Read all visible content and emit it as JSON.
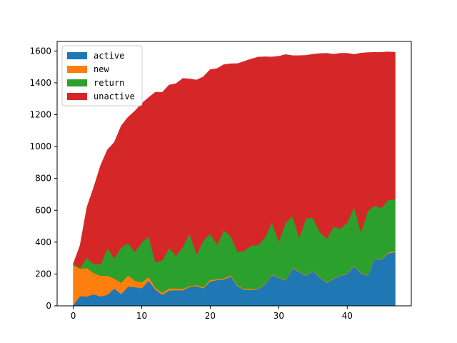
{
  "chart_data": {
    "type": "area",
    "stacked": true,
    "title": "",
    "xlabel": "",
    "ylabel": "",
    "xlim": [
      -2.35,
      49.35
    ],
    "ylim": [
      0,
      1660
    ],
    "x_ticks": [
      0,
      10,
      20,
      30,
      40
    ],
    "y_ticks": [
      0,
      200,
      400,
      600,
      800,
      1000,
      1200,
      1400,
      1600
    ],
    "legend_position": "top-left",
    "grid": false,
    "x": [
      0,
      1,
      2,
      3,
      4,
      5,
      6,
      7,
      8,
      9,
      10,
      11,
      12,
      13,
      14,
      15,
      16,
      17,
      18,
      19,
      20,
      21,
      22,
      23,
      24,
      25,
      26,
      27,
      28,
      29,
      30,
      31,
      32,
      33,
      34,
      35,
      36,
      37,
      38,
      39,
      40,
      41,
      42,
      43,
      44,
      45,
      46,
      47
    ],
    "series": [
      {
        "name": "active",
        "color": "#1f77b4",
        "values": [
          5,
          62,
          59,
          73,
          59,
          70,
          109,
          74,
          121,
          118,
          110,
          158,
          103,
          70,
          96,
          99,
          97,
          120,
          124,
          110,
          154,
          162,
          166,
          184,
          124,
          100,
          100,
          105,
          135,
          194,
          175,
          160,
          235,
          212,
          190,
          218,
          180,
          145,
          170,
          189,
          201,
          250,
          205,
          190,
          295,
          290,
          330,
          338
        ]
      },
      {
        "name": "new",
        "color": "#ff7f0e",
        "values": [
          250,
          172,
          179,
          133,
          130,
          120,
          62,
          71,
          70,
          40,
          38,
          24,
          11,
          13,
          14,
          10,
          10,
          6,
          7,
          7,
          10,
          5,
          7,
          8,
          5,
          5,
          6,
          3,
          3,
          4,
          3,
          3,
          4,
          3,
          3,
          3,
          3,
          4,
          3,
          3,
          3,
          4,
          3,
          3,
          4,
          3,
          6,
          7
        ]
      },
      {
        "name": "return",
        "color": "#2ca02c",
        "values": [
          8,
          5,
          66,
          57,
          72,
          172,
          128,
          223,
          204,
          180,
          250,
          254,
          160,
          203,
          255,
          206,
          265,
          327,
          192,
          295,
          290,
          218,
          302,
          245,
          210,
          241,
          274,
          274,
          293,
          327,
          227,
          359,
          325,
          213,
          357,
          332,
          281,
          274,
          325,
          293,
          319,
          368,
          255,
          403,
          330,
          322,
          330,
          323
        ]
      },
      {
        "name": "unactive",
        "color": "#d62728",
        "values": [
          0,
          141,
          316,
          482,
          621,
          618,
          728,
          762,
          789,
          885,
          873,
          872,
          1068,
          1054,
          1022,
          1080,
          1056,
          972,
          1095,
          1026,
          1030,
          1105,
          1040,
          1083,
          1182,
          1190,
          1170,
          1180,
          1133,
          1038,
          1162,
          1056,
          1007,
          1143,
          1023,
          1027,
          1120,
          1163,
          1082,
          1101,
          1063,
          957,
          1124,
          994,
          963,
          977,
          929,
          924
        ]
      }
    ]
  }
}
